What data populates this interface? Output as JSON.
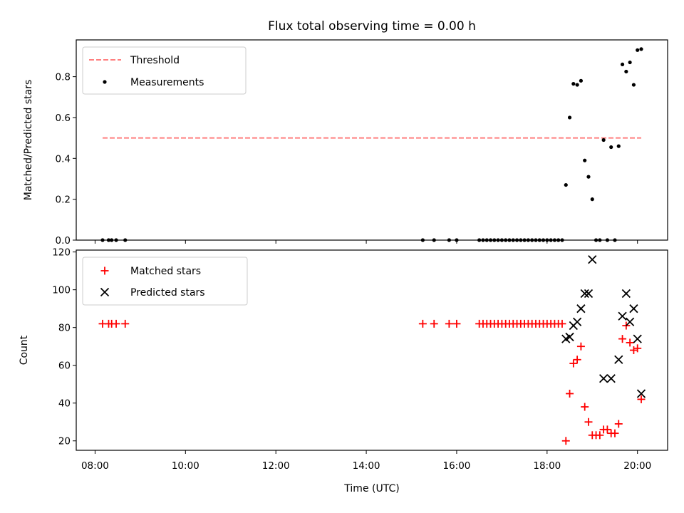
{
  "title": "Flux total observing time = 0.00 h",
  "chart_data": [
    {
      "type": "scatter",
      "ylabel": "Matched/Predicted stars",
      "xlabel": "",
      "xlim": [
        "07:35",
        "20:40"
      ],
      "ylim": [
        0,
        0.98
      ],
      "yticks": [
        0.0,
        0.2,
        0.4,
        0.6,
        0.8
      ],
      "ytick_labels": [
        "0.0",
        "0.2",
        "0.4",
        "0.6",
        "0.8"
      ],
      "grid": false,
      "legend_position": "top-left",
      "threshold": {
        "name": "Threshold",
        "value": 0.5,
        "x_start": "08:10",
        "x_end": "20:05",
        "color": "#ff7f7f",
        "style": "dashed"
      },
      "series": [
        {
          "name": "Measurements",
          "marker": "dot",
          "color": "#000000",
          "points": [
            [
              "08:10",
              0.0
            ],
            [
              "08:18",
              0.0
            ],
            [
              "08:22",
              0.0
            ],
            [
              "08:28",
              0.0
            ],
            [
              "08:40",
              0.0
            ],
            [
              "15:15",
              0.0
            ],
            [
              "15:30",
              0.0
            ],
            [
              "15:50",
              0.0
            ],
            [
              "16:00",
              0.0
            ],
            [
              "16:30",
              0.0
            ],
            [
              "16:35",
              0.0
            ],
            [
              "16:40",
              0.0
            ],
            [
              "16:45",
              0.0
            ],
            [
              "16:50",
              0.0
            ],
            [
              "16:55",
              0.0
            ],
            [
              "17:00",
              0.0
            ],
            [
              "17:05",
              0.0
            ],
            [
              "17:10",
              0.0
            ],
            [
              "17:15",
              0.0
            ],
            [
              "17:20",
              0.0
            ],
            [
              "17:25",
              0.0
            ],
            [
              "17:30",
              0.0
            ],
            [
              "17:35",
              0.0
            ],
            [
              "17:40",
              0.0
            ],
            [
              "17:45",
              0.0
            ],
            [
              "17:50",
              0.0
            ],
            [
              "17:55",
              0.0
            ],
            [
              "18:00",
              0.0
            ],
            [
              "18:05",
              0.0
            ],
            [
              "18:10",
              0.0
            ],
            [
              "18:15",
              0.0
            ],
            [
              "18:20",
              0.0
            ],
            [
              "18:25",
              0.27
            ],
            [
              "18:30",
              0.6
            ],
            [
              "18:35",
              0.765
            ],
            [
              "18:40",
              0.76
            ],
            [
              "18:45",
              0.78
            ],
            [
              "18:50",
              0.39
            ],
            [
              "18:55",
              0.31
            ],
            [
              "19:00",
              0.2
            ],
            [
              "19:05",
              0.0
            ],
            [
              "19:10",
              0.0
            ],
            [
              "19:15",
              0.49
            ],
            [
              "19:20",
              0.0
            ],
            [
              "19:25",
              0.455
            ],
            [
              "19:30",
              0.0
            ],
            [
              "19:35",
              0.46
            ],
            [
              "19:40",
              0.86
            ],
            [
              "19:45",
              0.825
            ],
            [
              "19:50",
              0.87
            ],
            [
              "19:55",
              0.76
            ],
            [
              "20:00",
              0.93
            ],
            [
              "20:05",
              0.935
            ]
          ]
        }
      ]
    },
    {
      "type": "scatter",
      "ylabel": "Count",
      "xlabel": "Time (UTC)",
      "xlim": [
        "07:35",
        "20:40"
      ],
      "ylim": [
        15,
        121
      ],
      "yticks": [
        20,
        40,
        60,
        80,
        100,
        120
      ],
      "ytick_labels": [
        "20",
        "40",
        "60",
        "80",
        "100",
        "120"
      ],
      "xticks": [
        "08:00",
        "10:00",
        "12:00",
        "14:00",
        "16:00",
        "18:00",
        "20:00"
      ],
      "xtick_labels": [
        "08:00",
        "10:00",
        "12:00",
        "14:00",
        "16:00",
        "18:00",
        "20:00"
      ],
      "grid": false,
      "legend_position": "top-left",
      "series": [
        {
          "name": "Matched stars",
          "marker": "plus",
          "color": "#ff0000",
          "points": [
            [
              "08:10",
              82
            ],
            [
              "08:18",
              82
            ],
            [
              "08:22",
              82
            ],
            [
              "08:28",
              82
            ],
            [
              "08:40",
              82
            ],
            [
              "15:15",
              82
            ],
            [
              "15:30",
              82
            ],
            [
              "15:50",
              82
            ],
            [
              "16:00",
              82
            ],
            [
              "16:30",
              82
            ],
            [
              "16:35",
              82
            ],
            [
              "16:40",
              82
            ],
            [
              "16:45",
              82
            ],
            [
              "16:50",
              82
            ],
            [
              "16:55",
              82
            ],
            [
              "17:00",
              82
            ],
            [
              "17:05",
              82
            ],
            [
              "17:10",
              82
            ],
            [
              "17:15",
              82
            ],
            [
              "17:20",
              82
            ],
            [
              "17:25",
              82
            ],
            [
              "17:30",
              82
            ],
            [
              "17:35",
              82
            ],
            [
              "17:40",
              82
            ],
            [
              "17:45",
              82
            ],
            [
              "17:50",
              82
            ],
            [
              "17:55",
              82
            ],
            [
              "18:00",
              82
            ],
            [
              "18:05",
              82
            ],
            [
              "18:10",
              82
            ],
            [
              "18:15",
              82
            ],
            [
              "18:20",
              82
            ],
            [
              "18:25",
              20
            ],
            [
              "18:30",
              45
            ],
            [
              "18:35",
              61
            ],
            [
              "18:40",
              63
            ],
            [
              "18:45",
              70
            ],
            [
              "18:50",
              38
            ],
            [
              "18:55",
              30
            ],
            [
              "19:00",
              23
            ],
            [
              "19:05",
              23
            ],
            [
              "19:10",
              23
            ],
            [
              "19:15",
              26
            ],
            [
              "19:20",
              26
            ],
            [
              "19:25",
              24
            ],
            [
              "19:30",
              24
            ],
            [
              "19:35",
              29
            ],
            [
              "19:40",
              74
            ],
            [
              "19:45",
              81
            ],
            [
              "19:50",
              72
            ],
            [
              "19:55",
              68
            ],
            [
              "20:00",
              69
            ],
            [
              "20:05",
              42
            ]
          ]
        },
        {
          "name": "Predicted stars",
          "marker": "x",
          "color": "#000000",
          "points": [
            [
              "18:25",
              74
            ],
            [
              "18:30",
              75
            ],
            [
              "18:35",
              81
            ],
            [
              "18:40",
              83
            ],
            [
              "18:45",
              90
            ],
            [
              "18:50",
              98
            ],
            [
              "18:55",
              98
            ],
            [
              "19:00",
              116
            ],
            [
              "19:15",
              53
            ],
            [
              "19:25",
              53
            ],
            [
              "19:35",
              63
            ],
            [
              "19:40",
              86
            ],
            [
              "19:45",
              98
            ],
            [
              "19:50",
              83
            ],
            [
              "19:55",
              90
            ],
            [
              "20:00",
              74
            ],
            [
              "20:05",
              45
            ]
          ]
        }
      ]
    }
  ]
}
